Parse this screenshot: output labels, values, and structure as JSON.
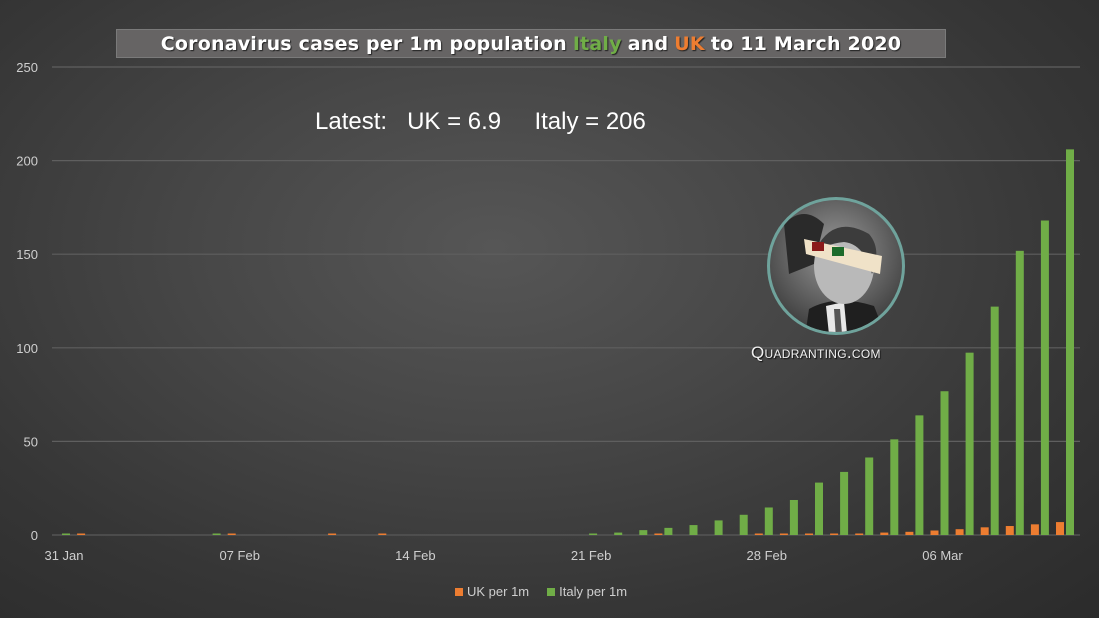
{
  "title": {
    "part1": "Coronavirus cases per 1m population",
    "italy": "Italy",
    "and": "and",
    "uk": "UK",
    "part2": "to 11 March 2020"
  },
  "latest": {
    "label": "Latest:",
    "uk": "UK = 6.9",
    "italy": "Italy = 206"
  },
  "watermark": "Quadranting.com",
  "colors": {
    "uk": "#ed7d31",
    "italy": "#70ad47",
    "title_italy": "#70ad47",
    "title_uk": "#ed7d31",
    "photo_ring": "#6fa39c"
  },
  "chart_data": {
    "type": "bar",
    "title": "Coronavirus cases per 1m population Italy and UK to 11 March 2020",
    "ylim": [
      0,
      250
    ],
    "yticks": [
      "0",
      "50",
      "100",
      "150",
      "200",
      "250"
    ],
    "xtick_labels": [
      "31 Jan",
      "07 Feb",
      "14 Feb",
      "21 Feb",
      "28 Feb",
      "06 Mar"
    ],
    "grid": true,
    "legend_position": "bottom",
    "categories": [
      "31 Jan",
      "01 Feb",
      "02 Feb",
      "03 Feb",
      "04 Feb",
      "05 Feb",
      "06 Feb",
      "07 Feb",
      "08 Feb",
      "09 Feb",
      "10 Feb",
      "11 Feb",
      "12 Feb",
      "13 Feb",
      "14 Feb",
      "15 Feb",
      "16 Feb",
      "17 Feb",
      "18 Feb",
      "19 Feb",
      "20 Feb",
      "21 Feb",
      "22 Feb",
      "23 Feb",
      "24 Feb",
      "25 Feb",
      "26 Feb",
      "27 Feb",
      "28 Feb",
      "29 Feb",
      "01 Mar",
      "02 Mar",
      "03 Mar",
      "04 Mar",
      "05 Mar",
      "06 Mar",
      "07 Mar",
      "08 Mar",
      "09 Mar",
      "10 Mar",
      "11 Mar"
    ],
    "series": [
      {
        "name": "UK per 1m",
        "color": "#ed7d31",
        "values": [
          0,
          0.03,
          0,
          0,
          0,
          0,
          0,
          0.05,
          0,
          0,
          0,
          0.12,
          0,
          0.13,
          0,
          0,
          0,
          0,
          0,
          0,
          0,
          0,
          0,
          0,
          0.19,
          0,
          0,
          0,
          0.3,
          0.34,
          0.54,
          0.6,
          0.76,
          1.3,
          1.7,
          2.4,
          3.1,
          4.1,
          4.8,
          5.7,
          6.9
        ]
      },
      {
        "name": "Italy per 1m",
        "color": "#70ad47",
        "values": [
          0.03,
          0,
          0,
          0,
          0,
          0,
          0.05,
          0,
          0,
          0,
          0,
          0,
          0,
          0,
          0,
          0,
          0,
          0,
          0,
          0,
          0,
          0.33,
          1.3,
          2.6,
          3.8,
          5.3,
          7.8,
          10.8,
          14.7,
          18.7,
          28,
          33.7,
          41.4,
          51.1,
          63.9,
          76.8,
          97.4,
          122,
          151.8,
          168,
          206
        ]
      }
    ]
  }
}
